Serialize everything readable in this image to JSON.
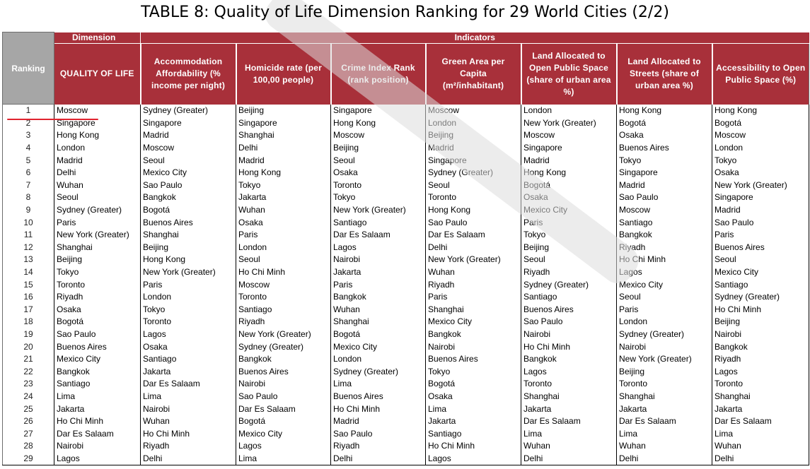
{
  "title": "TABLE 8: Quality of Life Dimension Ranking for 29 World Cities (2/2)",
  "header": {
    "ranking": "Ranking",
    "dimension": "Dimension",
    "indicators": "Indicators",
    "columns": [
      "QUALITY OF LIFE",
      "Accommodation Affordability (% income per night)",
      "Homicide rate (per 100,00 people)",
      "Crime Index Rank (rank position)",
      "Green Area per Capita (m²/inhabitant)",
      "Land Allocated to Open Public Space (share of urban area %)",
      "Land Allocated to Streets (share of urban area %)",
      "Accessibility to Open Public Space (%)"
    ]
  },
  "colors": {
    "header_red": "#a8303a",
    "header_gray": "#a6a6a6",
    "underline": "#e0232e"
  },
  "rows": [
    {
      "rank": "1",
      "cells": [
        "Moscow",
        "Sydney (Greater)",
        "Beijing",
        "Singapore",
        "Moscow",
        "London",
        "Hong Kong",
        "Hong Kong"
      ]
    },
    {
      "rank": "2",
      "cells": [
        "Singapore",
        "Singapore",
        "Singapore",
        "Hong Kong",
        "London",
        "New York (Greater)",
        "Bogotá",
        "Bogotá"
      ]
    },
    {
      "rank": "3",
      "cells": [
        "Hong Kong",
        "Madrid",
        "Shanghai",
        "Moscow",
        "Beijing",
        "Moscow",
        "Osaka",
        "Moscow"
      ]
    },
    {
      "rank": "4",
      "cells": [
        "London",
        "Moscow",
        "Delhi",
        "Beijing",
        "Madrid",
        "Singapore",
        "Buenos Aires",
        "London"
      ]
    },
    {
      "rank": "5",
      "cells": [
        "Madrid",
        "Seoul",
        "Madrid",
        "Seoul",
        "Singapore",
        "Madrid",
        "Tokyo",
        "Tokyo"
      ]
    },
    {
      "rank": "6",
      "cells": [
        "Delhi",
        "Mexico City",
        "Hong Kong",
        "Osaka",
        "Sydney (Greater)",
        "Hong Kong",
        "Singapore",
        "Osaka"
      ]
    },
    {
      "rank": "7",
      "cells": [
        "Wuhan",
        "Sao Paulo",
        "Tokyo",
        "Toronto",
        "Seoul",
        "Bogotá",
        "Madrid",
        "New York (Greater)"
      ]
    },
    {
      "rank": "8",
      "cells": [
        "Seoul",
        "Bangkok",
        "Jakarta",
        "Tokyo",
        "Toronto",
        "Osaka",
        "Sao Paulo",
        "Singapore"
      ]
    },
    {
      "rank": "9",
      "cells": [
        "Sydney (Greater)",
        "Bogotá",
        "Wuhan",
        "New York (Greater)",
        "Hong Kong",
        "Mexico City",
        "Moscow",
        "Madrid"
      ]
    },
    {
      "rank": "10",
      "cells": [
        "Paris",
        "Buenos Aires",
        "Osaka",
        "Santiago",
        "Sao Paulo",
        "Paris",
        "Santiago",
        "Sao Paulo"
      ]
    },
    {
      "rank": "11",
      "cells": [
        "New York (Greater)",
        "Shanghai",
        "Paris",
        "Dar Es Salaam",
        "Dar Es Salaam",
        "Tokyo",
        "Bangkok",
        "Paris"
      ]
    },
    {
      "rank": "12",
      "cells": [
        "Shanghai",
        "Beijing",
        "London",
        "Lagos",
        "Delhi",
        "Beijing",
        "Riyadh",
        "Buenos Aires"
      ]
    },
    {
      "rank": "13",
      "cells": [
        "Beijing",
        "Hong Kong",
        "Seoul",
        "Nairobi",
        "New York (Greater)",
        "Seoul",
        "Ho Chi Minh",
        "Seoul"
      ]
    },
    {
      "rank": "14",
      "cells": [
        "Tokyo",
        "New York (Greater)",
        "Ho Chi Minh",
        "Jakarta",
        "Wuhan",
        "Riyadh",
        "Lagos",
        "Mexico City"
      ]
    },
    {
      "rank": "15",
      "cells": [
        "Toronto",
        "Paris",
        "Moscow",
        "Paris",
        "Riyadh",
        "Sydney (Greater)",
        "Mexico City",
        "Santiago"
      ]
    },
    {
      "rank": "16",
      "cells": [
        "Riyadh",
        "London",
        "Toronto",
        "Bangkok",
        "Paris",
        "Santiago",
        "Seoul",
        "Sydney (Greater)"
      ]
    },
    {
      "rank": "17",
      "cells": [
        "Osaka",
        "Tokyo",
        "Santiago",
        "Wuhan",
        "Shanghai",
        "Buenos Aires",
        "Paris",
        "Ho Chi Minh"
      ]
    },
    {
      "rank": "18",
      "cells": [
        "Bogotá",
        "Toronto",
        "Riyadh",
        "Shanghai",
        "Mexico City",
        "Sao Paulo",
        "London",
        "Beijing"
      ]
    },
    {
      "rank": "19",
      "cells": [
        "Sao Paulo",
        "Lagos",
        "New York (Greater)",
        "Bogotá",
        "Bangkok",
        "Nairobi",
        "Sydney (Greater)",
        "Nairobi"
      ]
    },
    {
      "rank": "20",
      "cells": [
        "Buenos Aires",
        "Osaka",
        "Sydney (Greater)",
        "Mexico City",
        "Nairobi",
        "Ho Chi Minh",
        "Nairobi",
        "Bangkok"
      ]
    },
    {
      "rank": "21",
      "cells": [
        "Mexico City",
        "Santiago",
        "Bangkok",
        "London",
        "Buenos Aires",
        "Bangkok",
        "New York (Greater)",
        "Riyadh"
      ]
    },
    {
      "rank": "22",
      "cells": [
        "Bangkok",
        "Jakarta",
        "Buenos Aires",
        "Sydney (Greater)",
        "Tokyo",
        "Lagos",
        "Beijing",
        "Lagos"
      ]
    },
    {
      "rank": "23",
      "cells": [
        "Santiago",
        "Dar Es Salaam",
        "Nairobi",
        "Lima",
        "Bogotá",
        "Toronto",
        "Toronto",
        "Toronto"
      ]
    },
    {
      "rank": "24",
      "cells": [
        "Lima",
        "Lima",
        "Sao Paulo",
        "Buenos Aires",
        "Osaka",
        "Shanghai",
        "Shanghai",
        "Shanghai"
      ]
    },
    {
      "rank": "25",
      "cells": [
        "Jakarta",
        "Nairobi",
        "Dar Es Salaam",
        "Ho Chi Minh",
        "Lima",
        "Jakarta",
        "Jakarta",
        "Jakarta"
      ]
    },
    {
      "rank": "26",
      "cells": [
        "Ho Chi Minh",
        "Wuhan",
        "Bogotá",
        "Madrid",
        "Jakarta",
        "Dar Es Salaam",
        "Dar Es Salaam",
        "Dar Es Salaam"
      ]
    },
    {
      "rank": "27",
      "cells": [
        "Dar Es Salaam",
        "Ho Chi Minh",
        "Mexico City",
        "Sao Paulo",
        "Santiago",
        "Lima",
        "Lima",
        "Lima"
      ]
    },
    {
      "rank": "28",
      "cells": [
        "Nairobi",
        "Riyadh",
        "Lagos",
        "Riyadh",
        "Ho Chi Minh",
        "Wuhan",
        "Wuhan",
        "Wuhan"
      ]
    },
    {
      "rank": "29",
      "cells": [
        "Lagos",
        "Delhi",
        "Lima",
        "Delhi",
        "Lagos",
        "Delhi",
        "Delhi",
        "Delhi"
      ]
    }
  ]
}
